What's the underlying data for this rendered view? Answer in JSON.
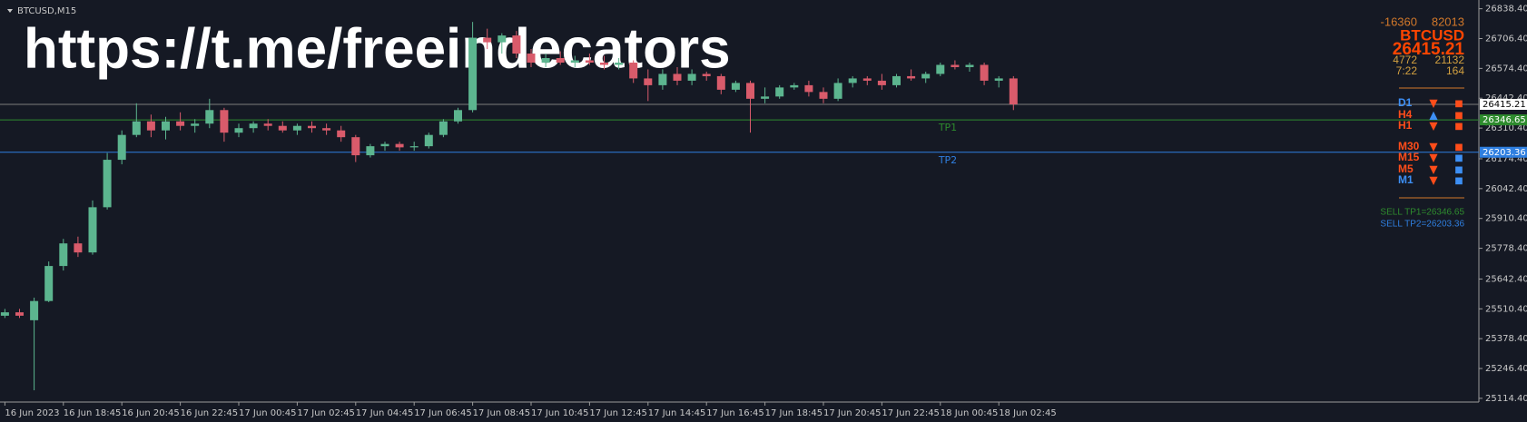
{
  "chart_data": {
    "type": "candlestick",
    "title": "BTCUSD,M15",
    "categories": [
      "16 Jun 2023",
      null,
      null,
      null,
      "16 Jun 18:45",
      null,
      null,
      null,
      "16 Jun 20:45",
      null,
      null,
      null,
      "16 Jun 22:45",
      null,
      null,
      null,
      "17 Jun 00:45",
      null,
      null,
      null,
      "17 Jun 02:45",
      null,
      null,
      null,
      "17 Jun 04:45",
      null,
      null,
      null,
      "17 Jun 06:45",
      null,
      null,
      null,
      "17 Jun 08:45",
      null,
      null,
      null,
      "17 Jun 10:45",
      null,
      null,
      null,
      "17 Jun 12:45",
      null,
      null,
      null,
      "17 Jun 14:45",
      null,
      null,
      null,
      "17 Jun 16:45",
      null,
      null,
      null,
      "17 Jun 18:45",
      null,
      null,
      null,
      "17 Jun 20:45",
      null,
      null,
      null,
      "17 Jun 22:45",
      null,
      null,
      null,
      "18 Jun 00:45",
      null,
      null,
      null,
      "18 Jun 02:45",
      null
    ],
    "open": [
      25480,
      25495,
      25460,
      25545,
      25700,
      25800,
      25760,
      25960,
      26170,
      26280,
      26340,
      26300,
      26340,
      26320,
      26330,
      26390,
      26290,
      26310,
      26330,
      26320,
      26300,
      26320,
      26310,
      26300,
      26270,
      26190,
      26230,
      26240,
      26225,
      26230,
      26280,
      26340,
      26390,
      26710,
      26690,
      26720,
      26640,
      26600,
      26620,
      26600,
      26610,
      26600,
      26590,
      26600,
      26530,
      26500,
      26550,
      26520,
      26550,
      26540,
      26480,
      26510,
      26440,
      26450,
      26490,
      26500,
      26470,
      26440,
      26510,
      26530,
      26520,
      26500,
      26540,
      26530,
      26550,
      26590,
      26580,
      26590,
      26520,
      26530
    ],
    "high": [
      25510,
      25510,
      25560,
      25720,
      25820,
      25830,
      25990,
      26200,
      26300,
      26420,
      26370,
      26360,
      26380,
      26350,
      26440,
      26400,
      26330,
      26340,
      26350,
      26340,
      26330,
      26340,
      26330,
      26320,
      26280,
      26240,
      26250,
      26250,
      26250,
      26290,
      26350,
      26400,
      26780,
      26750,
      26730,
      26740,
      26660,
      26640,
      26650,
      26630,
      26640,
      26630,
      26620,
      26610,
      26570,
      26570,
      26580,
      26570,
      26560,
      26550,
      26520,
      26520,
      26490,
      26500,
      26510,
      26520,
      26490,
      26530,
      26540,
      26540,
      26550,
      26550,
      26570,
      26560,
      26600,
      26610,
      26600,
      26600,
      26540,
      26540
    ],
    "low": [
      25470,
      25470,
      25150,
      25540,
      25680,
      25740,
      25750,
      25950,
      26150,
      26270,
      26270,
      26260,
      26300,
      26290,
      26310,
      26250,
      26270,
      26290,
      26300,
      26290,
      26280,
      26290,
      26280,
      26250,
      26160,
      26180,
      26210,
      26210,
      26210,
      26220,
      26270,
      26330,
      26380,
      26660,
      26640,
      26620,
      26580,
      26580,
      26590,
      26580,
      26590,
      26570,
      26570,
      26510,
      26430,
      26480,
      26500,
      26500,
      26520,
      26460,
      26470,
      26290,
      26420,
      26440,
      26480,
      26450,
      26420,
      26430,
      26490,
      26500,
      26480,
      26490,
      26520,
      26510,
      26540,
      26570,
      26560,
      26500,
      26490,
      26390
    ],
    "close": [
      25495,
      25480,
      25545,
      25700,
      25800,
      25760,
      25960,
      26170,
      26280,
      26340,
      26300,
      26340,
      26320,
      26330,
      26390,
      26290,
      26310,
      26330,
      26320,
      26300,
      26320,
      26310,
      26300,
      26270,
      26190,
      26230,
      26240,
      26225,
      26230,
      26280,
      26340,
      26390,
      26710,
      26690,
      26720,
      26640,
      26600,
      26620,
      26600,
      26610,
      26600,
      26590,
      26600,
      26530,
      26500,
      26550,
      26520,
      26550,
      26540,
      26480,
      26510,
      26440,
      26450,
      26490,
      26500,
      26470,
      26440,
      26510,
      26530,
      26520,
      26500,
      26540,
      26530,
      26550,
      26590,
      26580,
      26590,
      26520,
      26530,
      26415.21
    ],
    "up_color": "#5cb58f",
    "down_color": "#d95b6b",
    "ylim": [
      25098,
      26861
    ],
    "yticks": [
      {
        "value": 26838.4,
        "label": "26838.40"
      },
      {
        "value": 26706.4,
        "label": "26706.40"
      },
      {
        "value": 26574.4,
        "label": "26574.40"
      },
      {
        "value": 26442.4,
        "label": "26442.40"
      },
      {
        "value": 26310.4,
        "label": "26310.40"
      },
      {
        "value": 26174.4,
        "label": "26174.40"
      },
      {
        "value": 26042.4,
        "label": "26042.40"
      },
      {
        "value": 25910.4,
        "label": "25910.40"
      },
      {
        "value": 25778.4,
        "label": "25778.40"
      },
      {
        "value": 25642.4,
        "label": "25642.40"
      },
      {
        "value": 25510.4,
        "label": "25510.40"
      },
      {
        "value": 25378.4,
        "label": "25378.40"
      },
      {
        "value": 25246.4,
        "label": "25246.40"
      },
      {
        "value": 25114.4,
        "label": "25114.40"
      }
    ],
    "grid": false,
    "levels": [
      {
        "value": 26415.21,
        "color": "#7d7d7d",
        "tag_fill": "#ffffff",
        "tag_text": "#000000"
      },
      {
        "name": "TP1",
        "value": 26346.65,
        "color": "#2e8b2e",
        "tag_fill": "#2e8b2e",
        "tag_text": "#ffffff"
      },
      {
        "name": "TP2",
        "value": 26203.36,
        "color": "#2f7fe0",
        "tag_fill": "#2f7fe0",
        "tag_text": "#ffffff"
      }
    ]
  },
  "watermark": "https://t.me/freeindecators",
  "info_panel": {
    "row1": [
      "-16360",
      "82013"
    ],
    "symbol": "BTCUSD",
    "price": "26415.21",
    "row4": [
      "4772",
      "21132"
    ],
    "row5": [
      "7:22",
      "164"
    ]
  },
  "signals": [
    {
      "tf": "D1",
      "tf_color": "#3d8ff5",
      "arrow": "▼",
      "arrow_color": "#ff4d1a",
      "square": "■",
      "square_color": "#ff4d1a"
    },
    {
      "tf": "H4",
      "tf_color": "#ff4d1a",
      "arrow": "▲",
      "arrow_color": "#3d8ff5",
      "square": "■",
      "square_color": "#ff4d1a"
    },
    {
      "tf": "H1",
      "tf_color": "#ff4d1a",
      "arrow": "▼",
      "arrow_color": "#ff4d1a",
      "square": "■",
      "square_color": "#ff4d1a"
    },
    {
      "tf": "M30",
      "tf_color": "#ff4d1a",
      "arrow": "▼",
      "arrow_color": "#ff4d1a",
      "square": "■",
      "square_color": "#ff4d1a"
    },
    {
      "tf": "M15",
      "tf_color": "#ff4d1a",
      "arrow": "▼",
      "arrow_color": "#ff4d1a",
      "square": "■",
      "square_color": "#3d8ff5"
    },
    {
      "tf": "M5",
      "tf_color": "#ff4d1a",
      "arrow": "▼",
      "arrow_color": "#ff4d1a",
      "square": "■",
      "square_color": "#3d8ff5"
    },
    {
      "tf": "M1",
      "tf_color": "#3d8ff5",
      "arrow": "▼",
      "arrow_color": "#ff4d1a",
      "square": "■",
      "square_color": "#3d8ff5"
    }
  ],
  "sell_targets": [
    {
      "text": "SELL TP1=26346.65",
      "color": "#2e8b2e"
    },
    {
      "text": "SELL TP2=26203.36",
      "color": "#2f7fe0"
    }
  ]
}
